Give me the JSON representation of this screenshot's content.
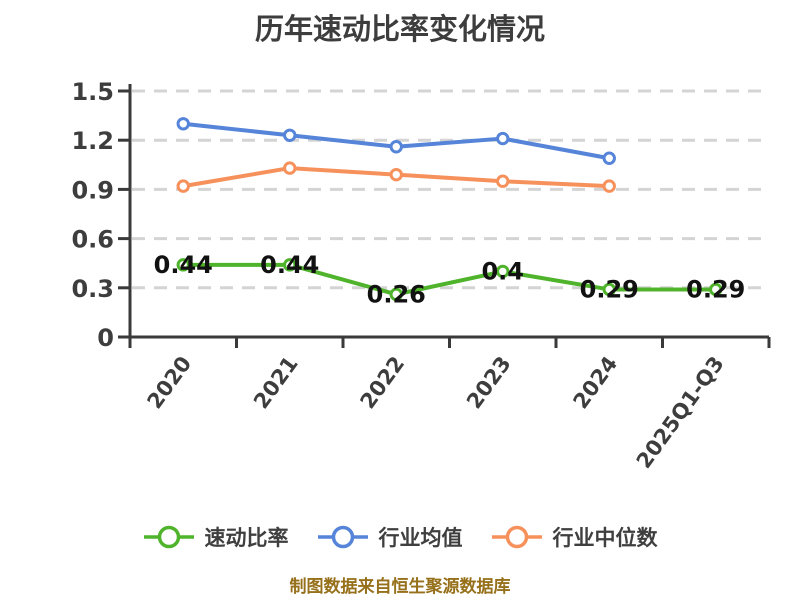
{
  "source_note": "制图数据来自恒生聚源数据库",
  "colors": {
    "background": "#ffffff",
    "title_text": "#3d3d3d",
    "axis": "#3a3a3a",
    "tick_label": "#3d3d3d",
    "gridline": "#d4d4d4",
    "value_label": "#111111",
    "caption_text": "#96701a",
    "marker_fill": "#ffffff"
  },
  "chart_data": {
    "type": "line",
    "title": "历年速动比率变化情况",
    "categories": [
      "2020",
      "2021",
      "2022",
      "2023",
      "2024",
      "2025Q1-Q3"
    ],
    "series": [
      {
        "key": "quick-ratio",
        "name": "速动比率",
        "color": "#4fb42c",
        "values": [
          0.44,
          0.44,
          0.26,
          0.4,
          0.29,
          0.29
        ],
        "value_labels": [
          "0.44",
          "0.44",
          "0.26",
          "0.4",
          "0.29",
          "0.29"
        ]
      },
      {
        "key": "industry-average",
        "name": "行业均值",
        "color": "#5584d9",
        "values": [
          1.3,
          1.23,
          1.16,
          1.21,
          1.09
        ],
        "value_labels": null
      },
      {
        "key": "industry-median",
        "name": "行业中位数",
        "color": "#f6915c",
        "values": [
          0.92,
          1.03,
          0.99,
          0.95,
          0.92
        ],
        "value_labels": null
      }
    ],
    "xlabel": "",
    "ylabel": "",
    "ylim": [
      0,
      1.5
    ],
    "yticks": [
      "0",
      "0.3",
      "0.6",
      "0.9",
      "1.2",
      "1.5"
    ],
    "grid": true,
    "gridline_style": "dashed",
    "legend_position": "bottom",
    "x_tick_label_rotation_deg": -54
  }
}
